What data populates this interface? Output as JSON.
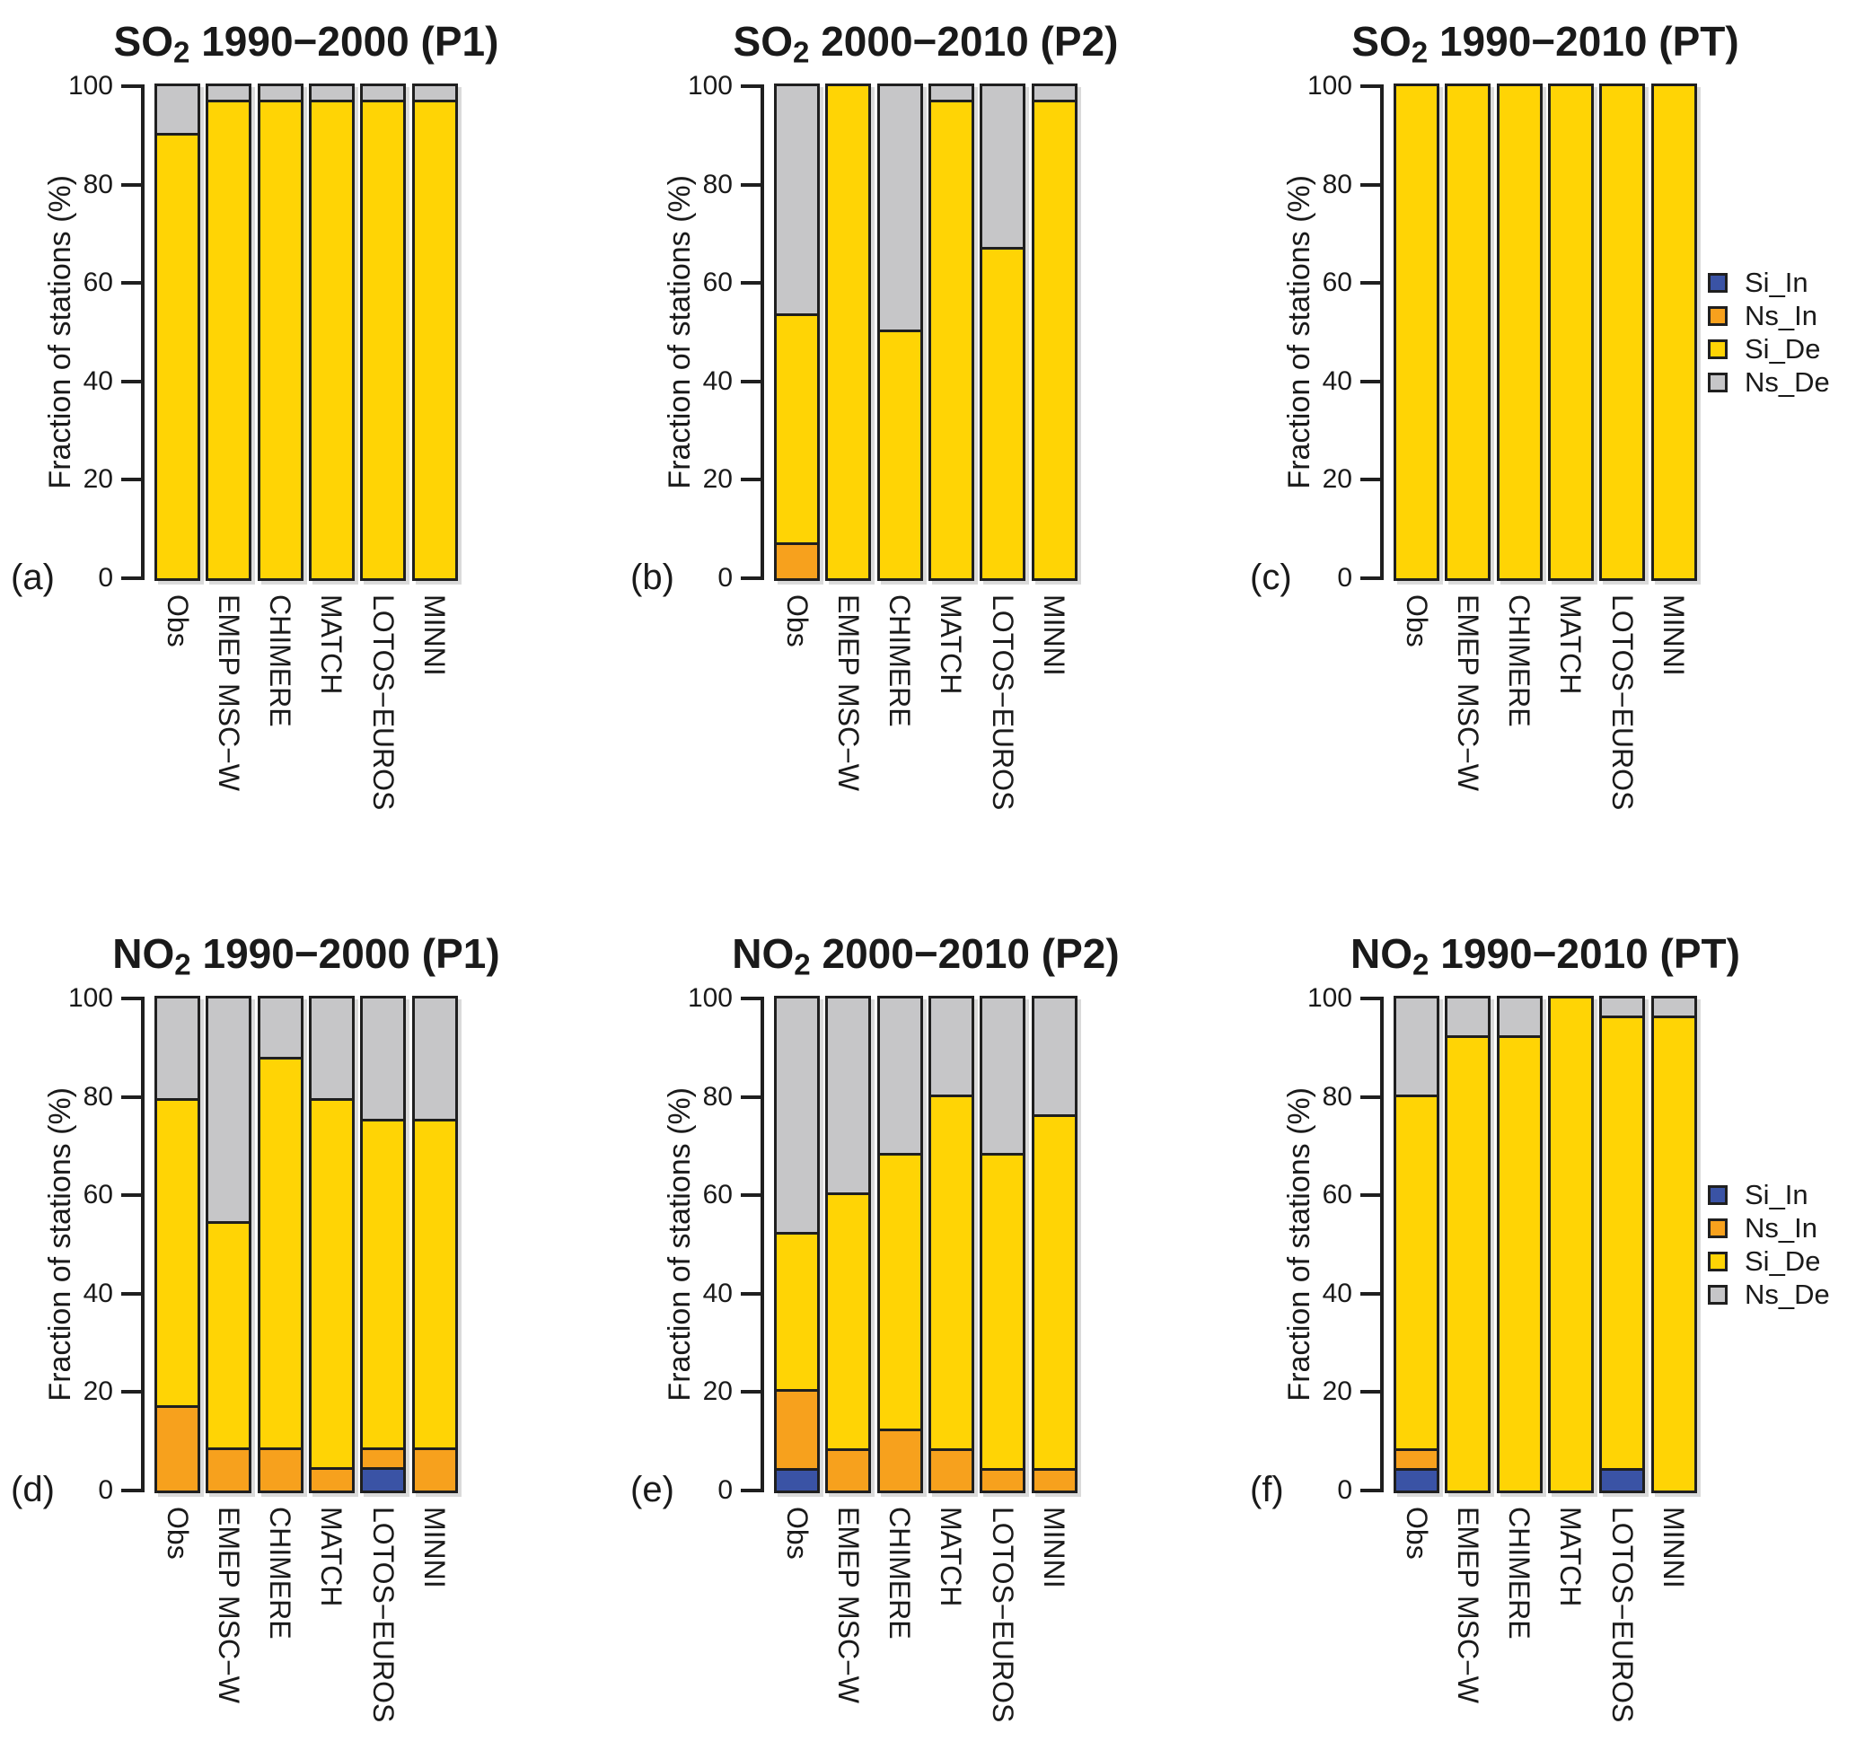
{
  "figure": {
    "background": "#FFFFFF",
    "text_color": "#1A1A1A",
    "y_axis": {
      "label": "Fraction of stations (%)",
      "ticks": [
        0,
        20,
        40,
        60,
        80,
        100
      ],
      "range": [
        0,
        100
      ]
    },
    "categories": [
      "Obs",
      "EMEP MSC−W",
      "CHIMERE",
      "MATCH",
      "LOTOS−EUROS",
      "MINNI"
    ],
    "legend": [
      {
        "name": "Si_In",
        "color": "#3A53A5",
        "swatch": "legend-swatch-si-in"
      },
      {
        "name": "Ns_In",
        "color": "#F7A11D",
        "swatch": "legend-swatch-ns-in"
      },
      {
        "name": "Si_De",
        "color": "#FFD405",
        "swatch": "legend-swatch-si-de"
      },
      {
        "name": "Ns_De",
        "color": "#C6C6C8",
        "swatch": "legend-swatch-ns-de"
      }
    ]
  },
  "chart_data": [
    {
      "id": "a",
      "panel_label": "(a)",
      "type": "bar",
      "stacked": true,
      "title": "SO2 1990−2000 (P1)",
      "title_prefix": "SO",
      "title_sub": "2",
      "title_rest": " 1990−2000 (P1)",
      "xlabel": "",
      "ylabel": "Fraction of stations (%)",
      "ylim": [
        0,
        100
      ],
      "categories": [
        "Obs",
        "EMEP MSC−W",
        "CHIMERE",
        "MATCH",
        "LOTOS−EUROS",
        "MINNI"
      ],
      "series": [
        {
          "name": "Si_In",
          "color": "#3A53A5",
          "values": [
            0,
            0,
            0,
            0,
            0,
            0
          ]
        },
        {
          "name": "Ns_In",
          "color": "#F7A11D",
          "values": [
            0,
            0,
            0,
            0,
            0,
            0
          ]
        },
        {
          "name": "Si_De",
          "color": "#FFD405",
          "values": [
            90,
            96.7,
            96.7,
            96.7,
            96.7,
            96.7
          ]
        },
        {
          "name": "Ns_De",
          "color": "#C6C6C8",
          "values": [
            10,
            3.3,
            3.3,
            3.3,
            3.3,
            3.3
          ]
        }
      ]
    },
    {
      "id": "b",
      "panel_label": "(b)",
      "type": "bar",
      "stacked": true,
      "title": "SO2 2000−2010 (P2)",
      "title_prefix": "SO",
      "title_sub": "2",
      "title_rest": " 2000−2010 (P2)",
      "xlabel": "",
      "ylabel": "Fraction of stations (%)",
      "ylim": [
        0,
        100
      ],
      "categories": [
        "Obs",
        "EMEP MSC−W",
        "CHIMERE",
        "MATCH",
        "LOTOS−EUROS",
        "MINNI"
      ],
      "series": [
        {
          "name": "Si_In",
          "color": "#3A53A5",
          "values": [
            0,
            0,
            0,
            0,
            0,
            0
          ]
        },
        {
          "name": "Ns_In",
          "color": "#F7A11D",
          "values": [
            6.7,
            0,
            0,
            0,
            0,
            0
          ]
        },
        {
          "name": "Si_De",
          "color": "#FFD405",
          "values": [
            46.6,
            100,
            50,
            96.7,
            66.7,
            96.7
          ]
        },
        {
          "name": "Ns_De",
          "color": "#C6C6C8",
          "values": [
            46.7,
            0,
            50,
            3.3,
            33.3,
            3.3
          ]
        }
      ]
    },
    {
      "id": "c",
      "panel_label": "(c)",
      "type": "bar",
      "stacked": true,
      "title": "SO2 1990−2010 (PT)",
      "title_prefix": "SO",
      "title_sub": "2",
      "title_rest": " 1990−2010 (PT)",
      "xlabel": "",
      "ylabel": "Fraction of stations (%)",
      "ylim": [
        0,
        100
      ],
      "categories": [
        "Obs",
        "EMEP MSC−W",
        "CHIMERE",
        "MATCH",
        "LOTOS−EUROS",
        "MINNI"
      ],
      "series": [
        {
          "name": "Si_In",
          "color": "#3A53A5",
          "values": [
            0,
            0,
            0,
            0,
            0,
            0
          ]
        },
        {
          "name": "Ns_In",
          "color": "#F7A11D",
          "values": [
            0,
            0,
            0,
            0,
            0,
            0
          ]
        },
        {
          "name": "Si_De",
          "color": "#FFD405",
          "values": [
            100,
            100,
            100,
            100,
            100,
            100
          ]
        },
        {
          "name": "Ns_De",
          "color": "#C6C6C8",
          "values": [
            0,
            0,
            0,
            0,
            0,
            0
          ]
        }
      ]
    },
    {
      "id": "d",
      "panel_label": "(d)",
      "type": "bar",
      "stacked": true,
      "title": "NO2 1990−2000 (P1)",
      "title_prefix": "NO",
      "title_sub": "2",
      "title_rest": " 1990−2000 (P1)",
      "xlabel": "",
      "ylabel": "Fraction of stations (%)",
      "ylim": [
        0,
        100
      ],
      "categories": [
        "Obs",
        "EMEP MSC−W",
        "CHIMERE",
        "MATCH",
        "LOTOS−EUROS",
        "MINNI"
      ],
      "series": [
        {
          "name": "Si_In",
          "color": "#3A53A5",
          "values": [
            0,
            0,
            0,
            0,
            4.2,
            0
          ]
        },
        {
          "name": "Ns_In",
          "color": "#F7A11D",
          "values": [
            16.7,
            8.3,
            8.3,
            4.2,
            4.1,
            8.3
          ]
        },
        {
          "name": "Si_De",
          "color": "#FFD405",
          "values": [
            62.5,
            45.9,
            79.2,
            75,
            66.7,
            66.7
          ]
        },
        {
          "name": "Ns_De",
          "color": "#C6C6C8",
          "values": [
            20.8,
            45.8,
            12.5,
            20.8,
            25,
            25
          ]
        }
      ]
    },
    {
      "id": "e",
      "panel_label": "(e)",
      "type": "bar",
      "stacked": true,
      "title": "NO2 2000−2010 (P2)",
      "title_prefix": "NO",
      "title_sub": "2",
      "title_rest": " 2000−2010 (P2)",
      "xlabel": "",
      "ylabel": "Fraction of stations (%)",
      "ylim": [
        0,
        100
      ],
      "categories": [
        "Obs",
        "EMEP MSC−W",
        "CHIMERE",
        "MATCH",
        "LOTOS−EUROS",
        "MINNI"
      ],
      "series": [
        {
          "name": "Si_In",
          "color": "#3A53A5",
          "values": [
            4,
            0,
            0,
            0,
            0,
            0
          ]
        },
        {
          "name": "Ns_In",
          "color": "#F7A11D",
          "values": [
            16,
            8,
            12,
            8,
            4,
            4
          ]
        },
        {
          "name": "Si_De",
          "color": "#FFD405",
          "values": [
            32,
            52,
            56,
            72,
            64,
            72
          ]
        },
        {
          "name": "Ns_De",
          "color": "#C6C6C8",
          "values": [
            48,
            40,
            32,
            20,
            32,
            24
          ]
        }
      ]
    },
    {
      "id": "f",
      "panel_label": "(f)",
      "type": "bar",
      "stacked": true,
      "title": "NO2 1990−2010 (PT)",
      "title_prefix": "NO",
      "title_sub": "2",
      "title_rest": " 1990−2010 (PT)",
      "xlabel": "",
      "ylabel": "Fraction of stations (%)",
      "ylim": [
        0,
        100
      ],
      "categories": [
        "Obs",
        "EMEP MSC−W",
        "CHIMERE",
        "MATCH",
        "LOTOS−EUROS",
        "MINNI"
      ],
      "series": [
        {
          "name": "Si_In",
          "color": "#3A53A5",
          "values": [
            4,
            0,
            0,
            0,
            4,
            0
          ]
        },
        {
          "name": "Ns_In",
          "color": "#F7A11D",
          "values": [
            4,
            0,
            0,
            0,
            0,
            0
          ]
        },
        {
          "name": "Si_De",
          "color": "#FFD405",
          "values": [
            72,
            92,
            92,
            100,
            92,
            96
          ]
        },
        {
          "name": "Ns_De",
          "color": "#C6C6C8",
          "values": [
            20,
            8,
            8,
            0,
            4,
            4
          ]
        }
      ]
    }
  ]
}
